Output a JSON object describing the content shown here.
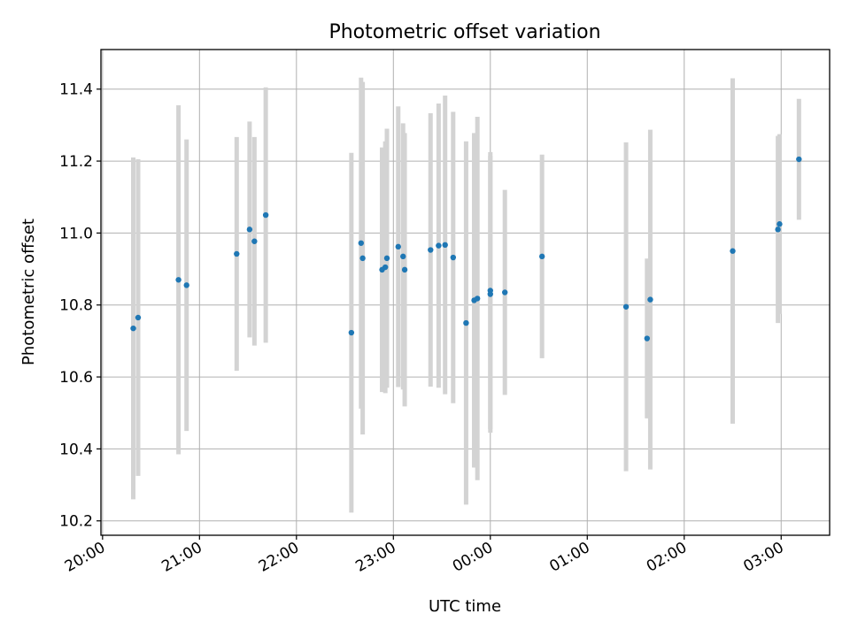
{
  "chart_data": {
    "type": "scatter",
    "title": "Photometric offset variation",
    "xlabel": "UTC time",
    "ylabel": "Photometric offset",
    "x_tick_labels": [
      "20:00",
      "21:00",
      "22:00",
      "23:00",
      "00:00",
      "01:00",
      "02:00",
      "03:00"
    ],
    "y_tick_labels": [
      "10.2",
      "10.4",
      "10.6",
      "10.8",
      "11.0",
      "11.2",
      "11.4"
    ],
    "y_ticks": [
      10.2,
      10.4,
      10.6,
      10.8,
      11.0,
      11.2,
      11.4
    ],
    "xlim": [
      "19:59",
      "03:30"
    ],
    "ylim": [
      10.16,
      11.51
    ],
    "grid": true,
    "colors": {
      "point": "#1f77b4",
      "errorbar": "#d3d3d3",
      "grid": "#b0b0b0"
    },
    "points": [
      {
        "time": "20:19",
        "value": 10.735,
        "yerr": 0.475
      },
      {
        "time": "20:22",
        "value": 10.765,
        "yerr": 0.44
      },
      {
        "time": "20:47",
        "value": 10.87,
        "yerr": 0.485
      },
      {
        "time": "20:52",
        "value": 10.855,
        "yerr": 0.405
      },
      {
        "time": "21:23",
        "value": 10.942,
        "yerr": 0.325
      },
      {
        "time": "21:31",
        "value": 11.01,
        "yerr": 0.3
      },
      {
        "time": "21:34",
        "value": 10.977,
        "yerr": 0.29
      },
      {
        "time": "21:41",
        "value": 11.05,
        "yerr": 0.355
      },
      {
        "time": "22:34",
        "value": 10.723,
        "yerr": 0.5
      },
      {
        "time": "22:40",
        "value": 10.972,
        "yerr": 0.46
      },
      {
        "time": "22:41",
        "value": 10.93,
        "yerr": 0.49
      },
      {
        "time": "22:53",
        "value": 10.898,
        "yerr": 0.34
      },
      {
        "time": "22:55",
        "value": 10.905,
        "yerr": 0.35
      },
      {
        "time": "22:56",
        "value": 10.93,
        "yerr": 0.36
      },
      {
        "time": "23:03",
        "value": 10.962,
        "yerr": 0.39
      },
      {
        "time": "23:06",
        "value": 10.935,
        "yerr": 0.37
      },
      {
        "time": "23:07",
        "value": 10.898,
        "yerr": 0.38
      },
      {
        "time": "23:23",
        "value": 10.953,
        "yerr": 0.38
      },
      {
        "time": "23:28",
        "value": 10.965,
        "yerr": 0.395
      },
      {
        "time": "23:32",
        "value": 10.967,
        "yerr": 0.415
      },
      {
        "time": "23:37",
        "value": 10.932,
        "yerr": 0.405
      },
      {
        "time": "23:45",
        "value": 10.75,
        "yerr": 0.505
      },
      {
        "time": "23:50",
        "value": 10.813,
        "yerr": 0.465
      },
      {
        "time": "23:52",
        "value": 10.818,
        "yerr": 0.505
      },
      {
        "time": "00:00",
        "value": 10.84,
        "yerr": 0.385
      },
      {
        "time": "00:00",
        "value": 10.83,
        "yerr": 0.385
      },
      {
        "time": "00:09",
        "value": 10.835,
        "yerr": 0.285
      },
      {
        "time": "00:32",
        "value": 10.935,
        "yerr": 0.283
      },
      {
        "time": "01:24",
        "value": 10.795,
        "yerr": 0.457
      },
      {
        "time": "01:37",
        "value": 10.707,
        "yerr": 0.222
      },
      {
        "time": "01:39",
        "value": 10.815,
        "yerr": 0.472
      },
      {
        "time": "02:30",
        "value": 10.95,
        "yerr": 0.48
      },
      {
        "time": "02:58",
        "value": 11.01,
        "yerr": 0.26
      },
      {
        "time": "02:59",
        "value": 11.025,
        "yerr": 0.25
      },
      {
        "time": "03:11",
        "value": 11.205,
        "yerr": 0.168
      }
    ]
  }
}
